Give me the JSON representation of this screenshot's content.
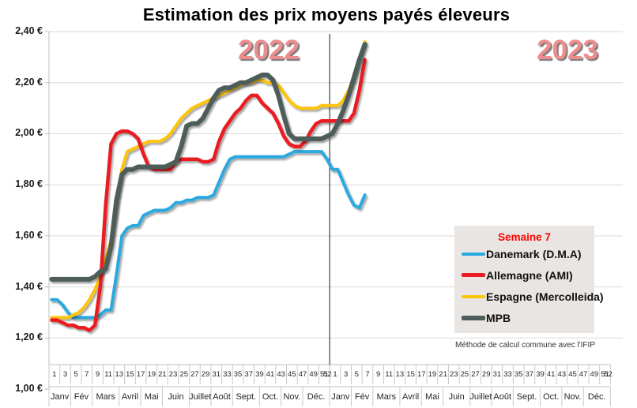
{
  "title": "Estimation des prix moyens payés éleveurs",
  "year_labels": [
    "2022",
    "2023"
  ],
  "legend": {
    "title": "Semaine 7",
    "items": [
      {
        "key": "danemark",
        "label": "Danemark (D.M.A)",
        "color": "#2aa9e0",
        "thickness": 4
      },
      {
        "key": "allemagne",
        "label": "Allemagne (AMI)",
        "color": "#ea1c24",
        "thickness": 4.5
      },
      {
        "key": "espagne",
        "label": "Espagne (Mercolleida)",
        "color": "#fdc40e",
        "thickness": 4
      },
      {
        "key": "mpb",
        "label": "MPB",
        "color": "#4e5d5a",
        "thickness": 6
      }
    ]
  },
  "footnote": "Méthode de calcul commune avec l'IFIP",
  "chart_data": {
    "type": "line",
    "title": "Estimation des prix moyens payés éleveurs",
    "ylim": [
      1.0,
      2.4
    ],
    "grid": true,
    "y_tick_labels": [
      "2,40 €",
      "2,20 €",
      "2,00 €",
      "1,80 €",
      "1,60 €",
      "1,40 €",
      "1,20 €",
      "1,00 €"
    ],
    "x_structure": {
      "years": [
        "2022",
        "2023"
      ],
      "weeks_per_year": 52,
      "week_tick_labels": [
        1,
        3,
        5,
        7,
        9,
        11,
        13,
        15,
        17,
        19,
        21,
        23,
        25,
        27,
        29,
        31,
        33,
        35,
        37,
        39,
        41,
        43,
        45,
        47,
        49,
        51,
        52
      ],
      "month_labels": [
        "Janv",
        "Fév",
        "Mars",
        "Avril",
        "Mai",
        "Juin",
        "Juillet",
        "Août",
        "Sept.",
        "Oct.",
        "Nov.",
        "Déc."
      ],
      "month_week_spans": [
        4,
        4,
        5,
        4,
        4,
        5,
        4,
        4,
        5,
        4,
        4,
        5
      ],
      "data_weeks_2023": 7,
      "year_divider_between": true
    },
    "series": [
      {
        "key": "danemark",
        "name": "Danemark (D.M.A)",
        "color": "#2aa9e0",
        "stroke_width": 4,
        "values": [
          1.35,
          1.35,
          1.33,
          1.3,
          1.28,
          1.28,
          1.28,
          1.28,
          1.28,
          1.29,
          1.31,
          1.31,
          1.45,
          1.6,
          1.63,
          1.64,
          1.64,
          1.68,
          1.69,
          1.7,
          1.7,
          1.7,
          1.71,
          1.73,
          1.73,
          1.74,
          1.74,
          1.75,
          1.75,
          1.75,
          1.76,
          1.81,
          1.86,
          1.9,
          1.91,
          1.91,
          1.91,
          1.91,
          1.91,
          1.91,
          1.91,
          1.91,
          1.91,
          1.91,
          1.92,
          1.93,
          1.93,
          1.93,
          1.93,
          1.93,
          1.93,
          1.9,
          1.86,
          1.86,
          1.81,
          1.76,
          1.72,
          1.71,
          1.76
        ]
      },
      {
        "key": "allemagne",
        "name": "Allemagne (AMI)",
        "color": "#ea1c24",
        "stroke_width": 4.5,
        "values": [
          1.27,
          1.27,
          1.26,
          1.25,
          1.25,
          1.24,
          1.24,
          1.23,
          1.25,
          1.4,
          1.72,
          1.96,
          2.0,
          2.01,
          2.01,
          2.0,
          1.98,
          1.92,
          1.87,
          1.86,
          1.86,
          1.86,
          1.86,
          1.89,
          1.9,
          1.9,
          1.9,
          1.9,
          1.89,
          1.89,
          1.9,
          1.97,
          2.02,
          2.05,
          2.08,
          2.1,
          2.13,
          2.15,
          2.15,
          2.12,
          2.1,
          2.08,
          2.04,
          1.99,
          1.96,
          1.95,
          1.95,
          1.97,
          2.01,
          2.04,
          2.05,
          2.05,
          2.05,
          2.05,
          2.05,
          2.05,
          2.08,
          2.17,
          2.29
        ]
      },
      {
        "key": "espagne",
        "name": "Espagne (Mercolleida)",
        "color": "#fdc40e",
        "stroke_width": 4,
        "values": [
          1.28,
          1.28,
          1.28,
          1.28,
          1.29,
          1.3,
          1.32,
          1.35,
          1.39,
          1.44,
          1.51,
          1.58,
          1.72,
          1.86,
          1.93,
          1.94,
          1.95,
          1.96,
          1.97,
          1.97,
          1.97,
          1.98,
          2.0,
          2.03,
          2.06,
          2.08,
          2.1,
          2.11,
          2.12,
          2.13,
          2.14,
          2.15,
          2.16,
          2.17,
          2.18,
          2.19,
          2.2,
          2.2,
          2.21,
          2.21,
          2.2,
          2.2,
          2.19,
          2.16,
          2.13,
          2.11,
          2.1,
          2.1,
          2.1,
          2.1,
          2.11,
          2.11,
          2.11,
          2.11,
          2.13,
          2.17,
          2.22,
          2.29,
          2.36
        ]
      },
      {
        "key": "mpb",
        "name": "MPB",
        "color": "#4e5d5a",
        "stroke_width": 6,
        "values": [
          1.43,
          1.43,
          1.43,
          1.43,
          1.43,
          1.43,
          1.43,
          1.43,
          1.44,
          1.46,
          1.47,
          1.56,
          1.74,
          1.84,
          1.86,
          1.86,
          1.87,
          1.87,
          1.87,
          1.87,
          1.87,
          1.87,
          1.88,
          1.89,
          1.95,
          2.03,
          2.04,
          2.04,
          2.06,
          2.1,
          2.14,
          2.17,
          2.18,
          2.18,
          2.19,
          2.2,
          2.2,
          2.21,
          2.22,
          2.23,
          2.23,
          2.21,
          2.15,
          2.07,
          2.0,
          1.98,
          1.98,
          1.98,
          1.98,
          1.98,
          1.98,
          1.99,
          2.0,
          2.04,
          2.09,
          2.15,
          2.22,
          2.29,
          2.35
        ]
      }
    ]
  }
}
